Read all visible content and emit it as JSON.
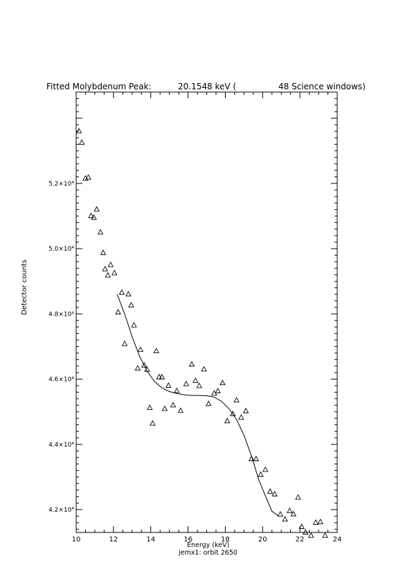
{
  "header": {
    "title_prefix": "Fitted Molybdenum Peak:",
    "energy": "20.1548 keV (",
    "windows": "48 Science windows)"
  },
  "footer": "jemx1: orbit 2650",
  "chart_data": {
    "type": "scatter",
    "xlabel": "Energy (keV)",
    "ylabel": "Detector counts",
    "xlim": [
      10,
      24
    ],
    "ylim": [
      41300,
      54800
    ],
    "x_ticks": [
      10,
      12,
      14,
      16,
      18,
      20,
      22,
      24
    ],
    "y_ticks": [
      {
        "value": 42000,
        "label": "4.2×10⁴"
      },
      {
        "value": 44000,
        "label": "4.4×10⁴"
      },
      {
        "value": 46000,
        "label": "4.6×10⁴"
      },
      {
        "value": 48000,
        "label": "4.8×10⁴"
      },
      {
        "value": 50000,
        "label": "5.0×10⁴"
      },
      {
        "value": 52000,
        "label": "5.2×10⁴"
      }
    ],
    "series": [
      {
        "marker": "triangle",
        "points": [
          [
            10.15,
            53600
          ],
          [
            10.3,
            53250
          ],
          [
            10.5,
            52150
          ],
          [
            10.65,
            52180
          ],
          [
            10.8,
            51000
          ],
          [
            10.95,
            50950
          ],
          [
            11.1,
            51200
          ],
          [
            11.3,
            50500
          ],
          [
            11.45,
            49870
          ],
          [
            11.55,
            49370
          ],
          [
            11.7,
            49180
          ],
          [
            11.85,
            49500
          ],
          [
            12.05,
            49250
          ],
          [
            12.25,
            48050
          ],
          [
            12.45,
            48650
          ],
          [
            12.6,
            47080
          ],
          [
            12.8,
            48600
          ],
          [
            12.95,
            48260
          ],
          [
            13.1,
            47650
          ],
          [
            13.3,
            46330
          ],
          [
            13.45,
            46900
          ],
          [
            13.65,
            46420
          ],
          [
            13.8,
            46290
          ],
          [
            13.95,
            45120
          ],
          [
            14.1,
            44640
          ],
          [
            14.3,
            46860
          ],
          [
            14.45,
            46060
          ],
          [
            14.6,
            46060
          ],
          [
            14.75,
            45090
          ],
          [
            14.95,
            45800
          ],
          [
            15.2,
            45200
          ],
          [
            15.4,
            45640
          ],
          [
            15.6,
            45030
          ],
          [
            15.9,
            45850
          ],
          [
            16.2,
            46450
          ],
          [
            16.4,
            45950
          ],
          [
            16.6,
            45790
          ],
          [
            16.85,
            46300
          ],
          [
            17.1,
            45240
          ],
          [
            17.4,
            45560
          ],
          [
            17.6,
            45630
          ],
          [
            17.85,
            45880
          ],
          [
            18.1,
            44710
          ],
          [
            18.4,
            44930
          ],
          [
            18.6,
            45350
          ],
          [
            18.85,
            44820
          ],
          [
            19.1,
            45020
          ],
          [
            19.4,
            43550
          ],
          [
            19.65,
            43550
          ],
          [
            19.9,
            43070
          ],
          [
            20.15,
            43220
          ],
          [
            20.4,
            42550
          ],
          [
            20.65,
            42470
          ],
          [
            20.95,
            41850
          ],
          [
            21.2,
            41700
          ],
          [
            21.45,
            41960
          ],
          [
            21.65,
            41860
          ],
          [
            21.9,
            42370
          ],
          [
            22.1,
            41470
          ],
          [
            22.3,
            41300
          ],
          [
            22.6,
            41200
          ],
          [
            22.85,
            41600
          ],
          [
            23.1,
            41620
          ],
          [
            23.35,
            41200
          ]
        ]
      },
      {
        "marker": "line",
        "points": [
          [
            12.2,
            48600
          ],
          [
            12.6,
            48000
          ],
          [
            13.0,
            47300
          ],
          [
            13.4,
            46700
          ],
          [
            13.8,
            46250
          ],
          [
            14.2,
            45930
          ],
          [
            14.6,
            45730
          ],
          [
            15.0,
            45620
          ],
          [
            15.4,
            45560
          ],
          [
            15.8,
            45520
          ],
          [
            16.2,
            45500
          ],
          [
            16.6,
            45500
          ],
          [
            17.0,
            45490
          ],
          [
            17.4,
            45450
          ],
          [
            17.8,
            45320
          ],
          [
            18.2,
            45090
          ],
          [
            18.6,
            44760
          ],
          [
            19.0,
            44280
          ],
          [
            19.4,
            43650
          ],
          [
            19.8,
            42900
          ],
          [
            20.2,
            42350
          ],
          [
            20.5,
            41950
          ],
          [
            20.85,
            41800
          ]
        ]
      }
    ]
  }
}
